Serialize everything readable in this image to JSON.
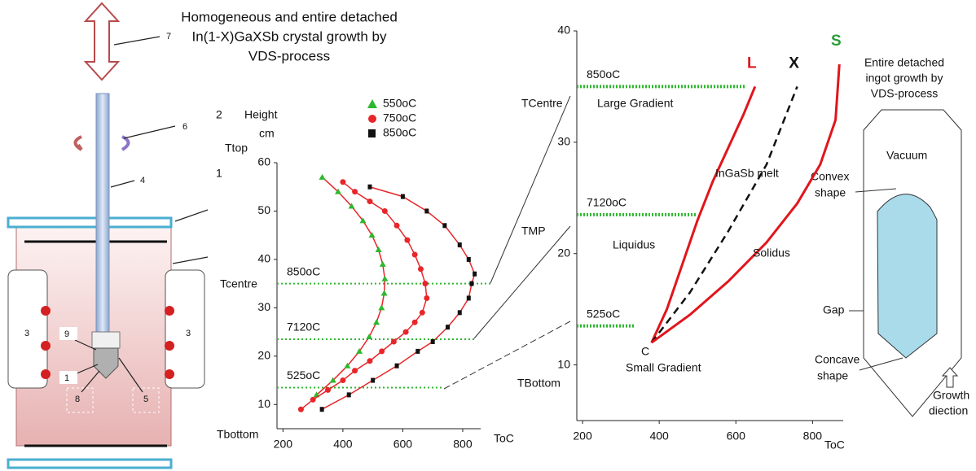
{
  "title_lines": [
    "Homogeneous and entire detached",
    "In(1-X)GaXSb crystal growth by",
    "VDS-process"
  ],
  "apparatus": {
    "labels": [
      "7",
      "6",
      "4",
      "3",
      "3",
      "9",
      "1",
      "8",
      "5"
    ]
  },
  "connectors": [
    "TCentre",
    "TMP",
    "TBottom"
  ],
  "ingot": {
    "title_lines": [
      "Entire detached",
      "ingot growth by",
      "VDS-process"
    ],
    "vacuum": "Vacuum",
    "convex": [
      "Convex",
      "shape"
    ],
    "gap": "Gap",
    "concave": [
      "Concave",
      "shape"
    ],
    "growth": [
      "Growth",
      "diection"
    ]
  },
  "chart_data": [
    {
      "type": "scatter",
      "y_label": "Height",
      "y_unit": "cm",
      "x_label": "ToC",
      "xlim": [
        180,
        860
      ],
      "xticks": [
        200,
        400,
        600,
        800
      ],
      "ylim": [
        5,
        60
      ],
      "yticks": [
        10,
        20,
        30,
        40,
        50,
        60
      ],
      "fit_color": "#e8262a",
      "reference_color": "#2db82d",
      "annotations": [
        "2",
        "1",
        "Ttop",
        "Tcentre",
        "Tbottom"
      ],
      "reference_lines": [
        {
          "label": "850oC",
          "value": 35
        },
        {
          "label": "7120C",
          "value": 23.5
        },
        {
          "label": "525oC",
          "value": 13.5
        }
      ],
      "series": [
        {
          "name": "550oC",
          "color": "#2db82d",
          "marker": "triangle",
          "x": [
            312,
            367,
            415,
            455,
            488,
            512,
            529,
            538,
            540,
            533,
            519,
            497,
            467,
            429,
            384,
            331
          ],
          "values": [
            12,
            15,
            18,
            21,
            24,
            27,
            30,
            33,
            36,
            39,
            42,
            45,
            48,
            51,
            54,
            57
          ]
        },
        {
          "name": "750oC",
          "color": "#e8262a",
          "marker": "circle",
          "x": [
            260,
            300,
            350,
            400,
            440,
            490,
            530,
            570,
            610,
            640,
            665,
            680,
            675,
            660,
            640,
            615,
            580,
            540,
            490,
            440,
            400
          ],
          "values": [
            9,
            11,
            13,
            15,
            17,
            19,
            21,
            23,
            25,
            27,
            29,
            32,
            35,
            38,
            41,
            44,
            47,
            50,
            52,
            54,
            56
          ]
        },
        {
          "name": "850oC",
          "color": "#111111",
          "marker": "square",
          "x": [
            330,
            420,
            500,
            580,
            650,
            700,
            750,
            790,
            820,
            830,
            840,
            820,
            790,
            740,
            680,
            600,
            490
          ],
          "values": [
            9,
            12,
            15,
            18,
            21,
            23,
            26,
            29,
            32,
            35,
            37,
            40,
            43,
            47,
            50,
            53,
            55
          ]
        }
      ]
    },
    {
      "type": "line",
      "x_label": "ToC",
      "xlim": [
        185,
        880
      ],
      "xticks": [
        200,
        400,
        600,
        800
      ],
      "ylim": [
        5,
        40
      ],
      "yticks": [
        10,
        20,
        30,
        40
      ],
      "reference_color": "#2db82d",
      "annotations": [
        "Large Gradient",
        "InGaSb melt",
        "Liquidus",
        "Solidus",
        "C",
        "Small Gradient"
      ],
      "reference_lines": [
        {
          "label": "850oC",
          "value": 35
        },
        {
          "label": "7120oC",
          "value": 23.5
        },
        {
          "label": "525oC",
          "value": 13.5
        }
      ],
      "series": [
        {
          "name": "L",
          "color": "#e0161c",
          "dashed": false,
          "x": [
            380,
            420,
            460,
            500,
            540,
            580,
            620,
            650
          ],
          "values": [
            12,
            15,
            19,
            23,
            26.5,
            29.5,
            32.5,
            35
          ]
        },
        {
          "name": "X",
          "color": "#111111",
          "dashed": true,
          "x": [
            380,
            480,
            580,
            680,
            760
          ],
          "values": [
            12,
            16.5,
            22,
            28,
            35
          ]
        },
        {
          "name": "S",
          "color": "#e0161c",
          "dashed": false,
          "x": [
            380,
            480,
            580,
            680,
            760,
            820,
            860,
            870
          ],
          "values": [
            12,
            14.5,
            17.5,
            21,
            24.5,
            28,
            32,
            37
          ]
        }
      ]
    }
  ]
}
